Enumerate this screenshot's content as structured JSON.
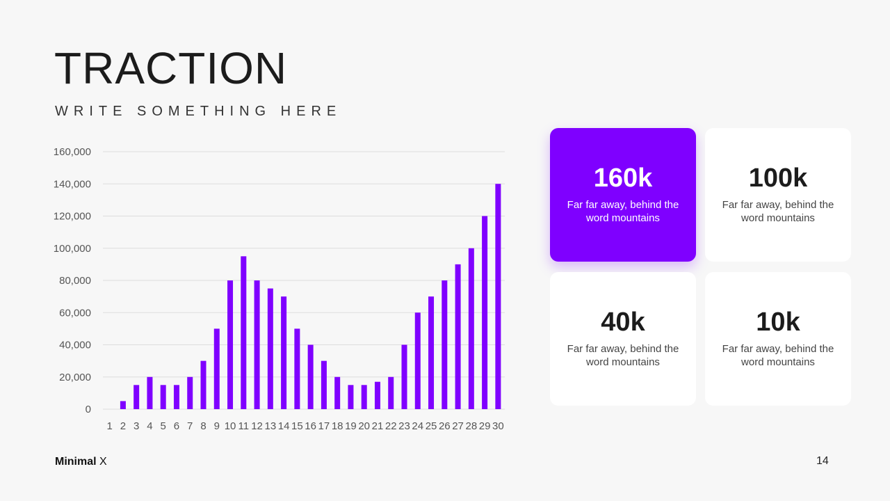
{
  "header": {
    "title": "TRACTION",
    "subtitle": "WRITE SOMETHING HERE"
  },
  "colors": {
    "accent": "#7f00ff",
    "background": "#f7f7f7",
    "card": "#ffffff"
  },
  "cards": [
    {
      "value": "160k",
      "desc": "Far far away, behind the word mountains"
    },
    {
      "value": "100k",
      "desc": "Far far away, behind the word mountains"
    },
    {
      "value": "40k",
      "desc": "Far far away, behind the word mountains"
    },
    {
      "value": "10k",
      "desc": "Far far away, behind the word mountains"
    }
  ],
  "footer": {
    "brand_bold": "Minimal",
    "brand_light": "X",
    "page_number": "14"
  },
  "chart_data": {
    "type": "bar",
    "categories": [
      "1",
      "2",
      "3",
      "4",
      "5",
      "6",
      "7",
      "8",
      "9",
      "10",
      "11",
      "12",
      "13",
      "14",
      "15",
      "16",
      "17",
      "18",
      "19",
      "20",
      "21",
      "22",
      "23",
      "24",
      "25",
      "26",
      "27",
      "28",
      "29",
      "30"
    ],
    "values": [
      0,
      5000,
      15000,
      20000,
      15000,
      15000,
      20000,
      30000,
      50000,
      80000,
      95000,
      80000,
      75000,
      70000,
      50000,
      40000,
      30000,
      20000,
      15000,
      15000,
      17000,
      20000,
      40000,
      60000,
      70000,
      80000,
      90000,
      100000,
      120000,
      140000
    ],
    "yticks": [
      "0",
      "20,000",
      "40,000",
      "60,000",
      "80,000",
      "100,000",
      "120,000",
      "140,000",
      "160,000"
    ],
    "ylim": [
      0,
      160000
    ],
    "grid": true,
    "title": "",
    "xlabel": "",
    "ylabel": ""
  }
}
